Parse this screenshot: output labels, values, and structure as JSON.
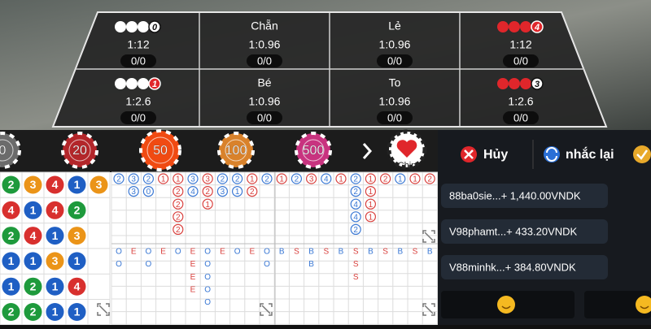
{
  "bet_table": {
    "cells": [
      {
        "dots": "white",
        "badge": "0",
        "badge_color": "white",
        "odds": "1:12",
        "stake": "0/0"
      },
      {
        "label": "Chẵn",
        "odds": "1:0.96",
        "stake": "0/0"
      },
      {
        "label": "Lẻ",
        "odds": "1:0.96",
        "stake": "0/0"
      },
      {
        "dots": "red",
        "badge": "4",
        "badge_color": "red",
        "odds": "1:12",
        "stake": "0/0"
      },
      {
        "dots": "white",
        "badge": "1",
        "badge_color": "red",
        "odds": "1:2.6",
        "stake": "0/0"
      },
      {
        "label": "Bé",
        "odds": "1:0.96",
        "stake": "0/0"
      },
      {
        "label": "To",
        "odds": "1:0.96",
        "stake": "0/0"
      },
      {
        "dots": "red",
        "badge": "3",
        "badge_color": "white",
        "odds": "1:2.6",
        "stake": "0/0"
      }
    ]
  },
  "chips": [
    {
      "label": "0",
      "color": "#6b6b6b"
    },
    {
      "label": "20",
      "color": "#b3262a"
    },
    {
      "label": "50",
      "color": "#f04a12"
    },
    {
      "label": "100",
      "color": "#d9822b"
    },
    {
      "label": "500",
      "color": "#c8337f"
    }
  ],
  "chip_button": "Chip",
  "actions": {
    "cancel": "Hủy",
    "repeat": "nhắc lại"
  },
  "wins": [
    "88ba0sie...+ 1,440.00VNDK",
    "V98phamt...+ 433.20VNDK",
    "V88minhk...+ 384.80VNDK"
  ],
  "bead_colors": {
    "1": "#1f5fc4",
    "2": "#1e9a3c",
    "3": "#eb9418",
    "4": "#d8302e"
  },
  "bead_road": [
    [
      "2",
      "4",
      "2",
      "1",
      "1",
      "2"
    ],
    [
      "3",
      "1",
      "4",
      "1",
      "2",
      "2"
    ],
    [
      "4",
      "4",
      "1",
      "3",
      "1",
      "1"
    ],
    [
      "1",
      "2",
      "3",
      "1",
      "4",
      "1"
    ],
    [
      "3"
    ]
  ],
  "side_colors": {
    "blue": "#3a78d4",
    "red": "#d9403d"
  },
  "big_road": [
    {
      "side": "blue",
      "values": [
        "2"
      ]
    },
    {
      "side": "blue",
      "values": [
        "3",
        "3"
      ]
    },
    {
      "side": "blue",
      "values": [
        "2",
        "0"
      ]
    },
    {
      "side": "red",
      "values": [
        "1"
      ]
    },
    {
      "side": "red",
      "values": [
        "1",
        "2",
        "2",
        "2",
        "2"
      ]
    },
    {
      "side": "blue",
      "values": [
        "3",
        "4"
      ]
    },
    {
      "side": "red",
      "values": [
        "3",
        "2",
        "1"
      ]
    },
    {
      "side": "blue",
      "values": [
        "2",
        "3"
      ]
    },
    {
      "side": "blue",
      "values": [
        "2",
        "1"
      ]
    },
    {
      "side": "red",
      "values": [
        "1",
        "2"
      ]
    },
    {
      "side": "blue",
      "values": [
        "2"
      ]
    },
    {
      "side": "red",
      "values": [
        "1"
      ]
    },
    {
      "side": "blue",
      "values": [
        "2"
      ]
    },
    {
      "side": "red",
      "values": [
        "3"
      ]
    },
    {
      "side": "blue",
      "values": [
        "4"
      ]
    },
    {
      "side": "red",
      "values": [
        "1"
      ]
    },
    {
      "side": "blue",
      "values": [
        "2",
        "2",
        "4",
        "4",
        "2"
      ]
    },
    {
      "side": "red",
      "values": [
        "1",
        "1",
        "1",
        "1"
      ]
    },
    {
      "side": "red",
      "values": [
        "2"
      ]
    },
    {
      "side": "blue",
      "values": [
        "1"
      ]
    },
    {
      "side": "red",
      "values": [
        "1"
      ]
    },
    {
      "side": "red",
      "values": [
        "2"
      ]
    }
  ],
  "letter_colors": {
    "O": "#3a78d4",
    "E": "#d9403d",
    "B": "#3a78d4",
    "S": "#d9403d"
  },
  "letter_road": [
    [
      "O",
      "O"
    ],
    [
      "E"
    ],
    [
      "O",
      "O"
    ],
    [
      "E"
    ],
    [
      "O"
    ],
    [
      "E",
      "E",
      "E",
      "E"
    ],
    [
      "O",
      "O",
      "O",
      "O",
      "O"
    ],
    [
      "E"
    ],
    [
      "O"
    ],
    [
      "E"
    ],
    [
      "O",
      "O"
    ],
    [
      "B"
    ],
    [
      "S"
    ],
    [
      "B",
      "B"
    ],
    [
      "S"
    ],
    [
      "B"
    ],
    [
      "S",
      "S",
      "S"
    ],
    [
      "B"
    ],
    [
      "S"
    ],
    [
      "B"
    ],
    [
      "S"
    ],
    [
      "B"
    ]
  ]
}
